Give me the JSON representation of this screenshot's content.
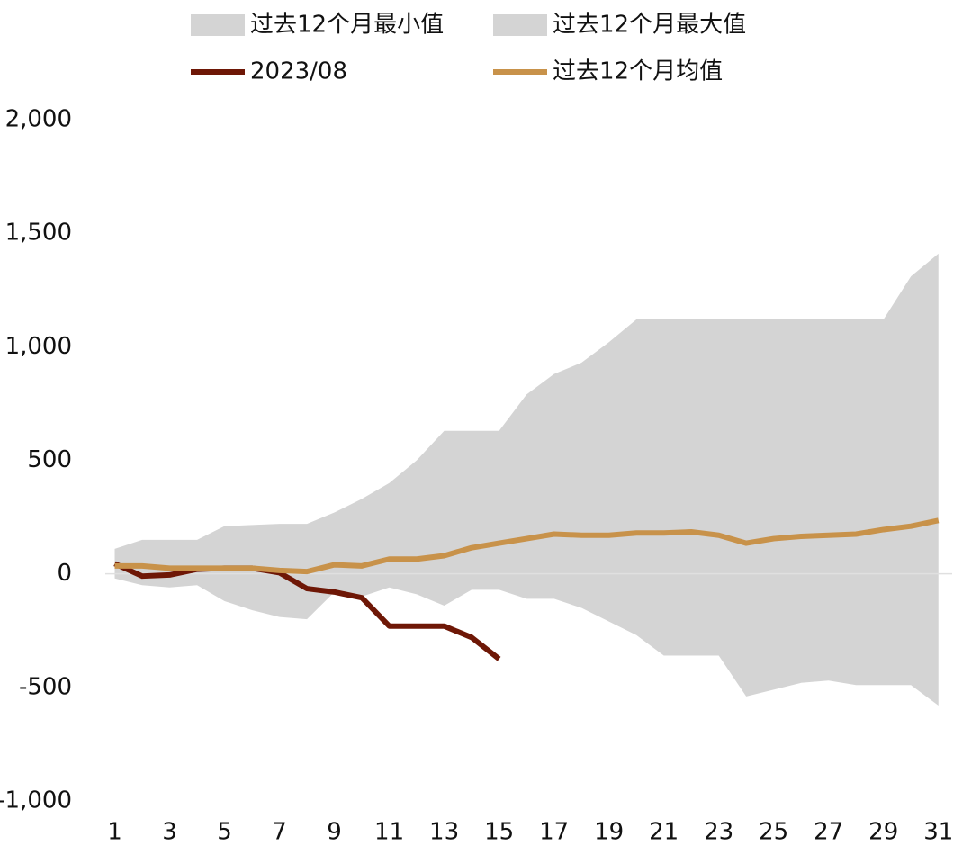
{
  "chart_data": {
    "type": "line",
    "x": [
      1,
      2,
      3,
      4,
      5,
      6,
      7,
      8,
      9,
      10,
      11,
      12,
      13,
      14,
      15,
      16,
      17,
      18,
      19,
      20,
      21,
      22,
      23,
      24,
      25,
      26,
      27,
      28,
      29,
      30,
      31
    ],
    "xlim": [
      0,
      31.5
    ],
    "xticks": [
      1,
      3,
      5,
      7,
      9,
      11,
      13,
      15,
      17,
      19,
      21,
      23,
      25,
      27,
      29,
      31
    ],
    "ylim": [
      -1000,
      2000
    ],
    "yticks": [
      {
        "value": -1000,
        "label": "-1,000"
      },
      -500,
      0,
      500,
      {
        "value": 1000,
        "label": "1,000"
      },
      {
        "value": 1500,
        "label": "1,500"
      },
      {
        "value": 2000,
        "label": "2,000"
      }
    ],
    "series": [
      {
        "name": "过去12个月最小值",
        "type": "area",
        "color": "#d4d4d4",
        "values": [
          -20,
          -50,
          -60,
          -50,
          -120,
          -160,
          -190,
          -200,
          -80,
          -100,
          -60,
          -90,
          -140,
          -70,
          -70,
          -110,
          -110,
          -150,
          -210,
          -270,
          -360,
          -360,
          -360,
          -540,
          -510,
          -480,
          -470,
          -490,
          -490,
          -490,
          -580
        ]
      },
      {
        "name": "过去12个月最大值",
        "type": "area",
        "color": "#d4d4d4",
        "values": [
          110,
          150,
          150,
          150,
          210,
          215,
          220,
          220,
          270,
          330,
          400,
          500,
          630,
          630,
          630,
          790,
          880,
          930,
          1020,
          1120,
          1120,
          1120,
          1120,
          1120,
          1120,
          1120,
          1120,
          1120,
          1120,
          1310,
          1410
        ]
      },
      {
        "name": "2023/08",
        "type": "line",
        "color": "#6e1706",
        "values": [
          45,
          -10,
          -5,
          20,
          25,
          25,
          5,
          -65,
          -80,
          -105,
          -230,
          -230,
          -230,
          -280,
          -375,
          null,
          null,
          null,
          null,
          null,
          null,
          null,
          null,
          null,
          null,
          null,
          null,
          null,
          null,
          null,
          null
        ]
      },
      {
        "name": "过去12个月均值",
        "type": "line",
        "color": "#c8924a",
        "values": [
          35,
          35,
          25,
          25,
          25,
          25,
          15,
          10,
          40,
          35,
          65,
          65,
          80,
          115,
          135,
          155,
          175,
          170,
          170,
          180,
          180,
          185,
          170,
          135,
          155,
          165,
          170,
          175,
          195,
          210,
          235
        ]
      }
    ]
  }
}
